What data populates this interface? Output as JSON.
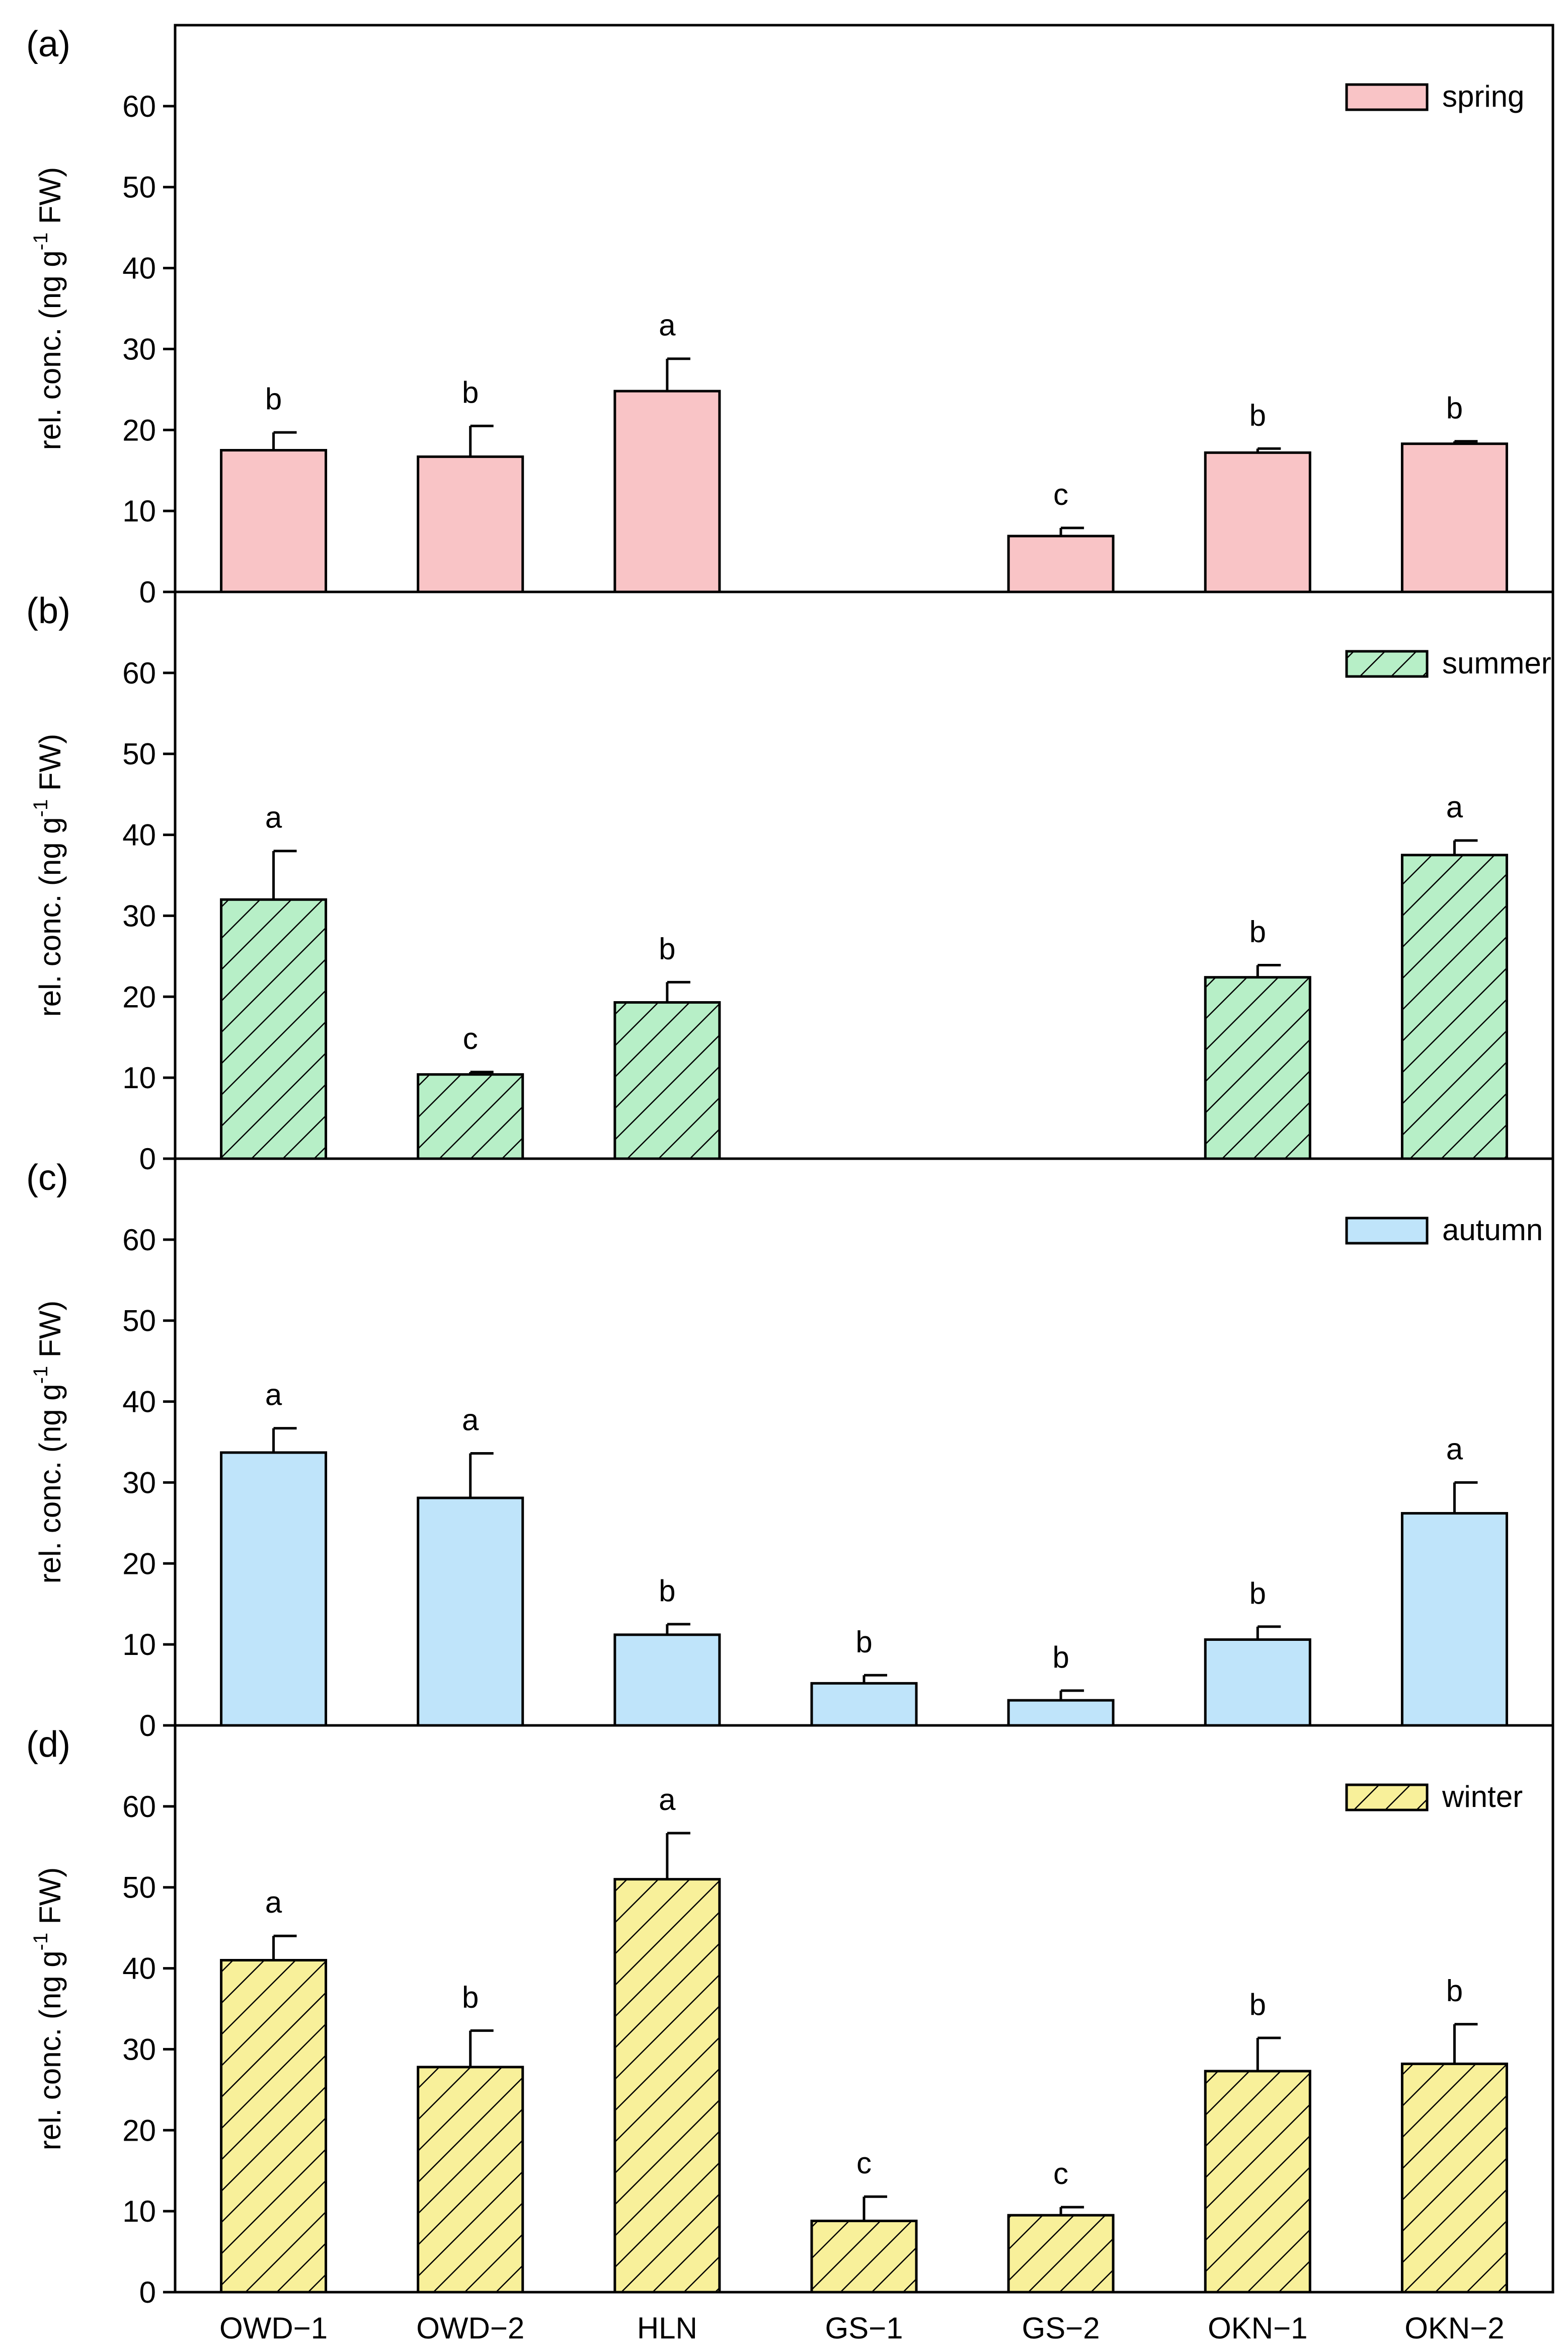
{
  "chart_data": {
    "type": "bar",
    "categories": [
      "OWD−1",
      "OWD−2",
      "HLN",
      "GS−1",
      "GS−2",
      "OKN−1",
      "OKN−2"
    ],
    "ylim": [
      0,
      70
    ],
    "yticks": [
      0,
      10,
      20,
      30,
      40,
      50,
      60
    ],
    "ylabel": {
      "main": "rel. conc. (ng g",
      "sup": "-1",
      "tail": " FW)"
    },
    "panels": [
      {
        "label": "(a)",
        "legend": "spring",
        "color": "#f9c4c6",
        "hatch": false,
        "values": [
          17.5,
          16.7,
          24.8,
          null,
          6.9,
          17.2,
          18.3
        ],
        "errors": [
          2.2,
          3.8,
          4.0,
          null,
          1.0,
          0.5,
          0.3
        ],
        "significance": [
          "b",
          "b",
          "a",
          "",
          "c",
          "b",
          "b"
        ]
      },
      {
        "label": "(b)",
        "legend": "summer",
        "color": "#b7efc7",
        "hatch": true,
        "values": [
          32.0,
          10.4,
          19.3,
          null,
          null,
          22.4,
          37.5
        ],
        "errors": [
          6.0,
          0.3,
          2.5,
          null,
          null,
          1.5,
          1.8
        ],
        "significance": [
          "a",
          "c",
          "b",
          "",
          "",
          "b",
          "a"
        ]
      },
      {
        "label": "(c)",
        "legend": "autumn",
        "color": "#bfe4fa",
        "hatch": false,
        "values": [
          33.7,
          28.1,
          11.2,
          5.2,
          3.1,
          10.6,
          26.2
        ],
        "errors": [
          3.0,
          5.5,
          1.3,
          1.0,
          1.2,
          1.6,
          3.8
        ],
        "significance": [
          "a",
          "a",
          "b",
          "b",
          "b",
          "b",
          "a"
        ]
      },
      {
        "label": "(d)",
        "legend": "winter",
        "color": "#f8f09a",
        "hatch": true,
        "values": [
          41.0,
          27.8,
          51.0,
          8.8,
          9.5,
          27.3,
          28.2
        ],
        "errors": [
          3.0,
          4.5,
          5.7,
          3.0,
          1.0,
          4.1,
          4.9
        ],
        "significance": [
          "a",
          "b",
          "a",
          "c",
          "c",
          "b",
          "b"
        ]
      }
    ]
  }
}
